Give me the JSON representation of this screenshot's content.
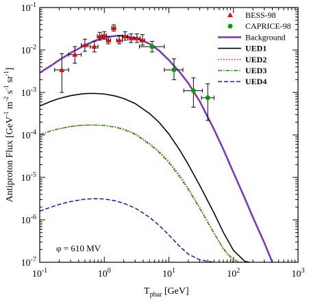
{
  "chart_data": {
    "type": "line",
    "xlabel_main": "T",
    "xlabel_sub": "pbar",
    "xlabel_unit": " [GeV]",
    "ylabel_main": "Antiproton Flux [GeV",
    "ylabel_m": " m",
    "ylabel_s": " s",
    "ylabel_sr": " sr",
    "ylabel_end": "]",
    "ylabel_exp1": "-1",
    "ylabel_exp2": "-2",
    "ylabel_exp3": "-1",
    "ylabel_exp4": "-1",
    "xscale": "log",
    "yscale": "log",
    "xlim": [
      0.1,
      1000
    ],
    "ylim": [
      1e-07,
      0.1
    ],
    "x_ticks": [
      {
        "value": 0.1,
        "base": "10",
        "exp": "-1"
      },
      {
        "value": 1,
        "base": "10",
        "exp": "0"
      },
      {
        "value": 10,
        "base": "10",
        "exp": "1"
      },
      {
        "value": 100,
        "base": "10",
        "exp": "2"
      },
      {
        "value": 1000,
        "base": "10",
        "exp": "3"
      }
    ],
    "y_ticks": [
      {
        "value": 1e-07,
        "base": "10",
        "exp": "-7"
      },
      {
        "value": 1e-06,
        "base": "10",
        "exp": "-6"
      },
      {
        "value": 1e-05,
        "base": "10",
        "exp": "-5"
      },
      {
        "value": 0.0001,
        "base": "10",
        "exp": "-4"
      },
      {
        "value": 0.001,
        "base": "10",
        "exp": "-3"
      },
      {
        "value": 0.01,
        "base": "10",
        "exp": "-2"
      },
      {
        "value": 0.1,
        "base": "10",
        "exp": "-1"
      }
    ],
    "annotation": "φ = 610 MV",
    "legend_position": "top-right",
    "series": [
      {
        "name": "BESS-98",
        "kind": "points",
        "marker": "triangle",
        "color": "#ff0000",
        "points": [
          {
            "x": 0.22,
            "y": 0.0034,
            "ylo": 0.001,
            "yhi": 0.0082,
            "xlo": 0.17,
            "xhi": 0.28
          },
          {
            "x": 0.35,
            "y": 0.0078,
            "ylo": 0.0049,
            "yhi": 0.012,
            "xlo": 0.28,
            "xhi": 0.44
          },
          {
            "x": 0.5,
            "y": 0.013,
            "ylo": 0.0093,
            "yhi": 0.018,
            "xlo": 0.44,
            "xhi": 0.56
          },
          {
            "x": 0.7,
            "y": 0.012,
            "ylo": 0.009,
            "yhi": 0.016,
            "xlo": 0.6,
            "xhi": 0.8
          },
          {
            "x": 0.85,
            "y": 0.021,
            "ylo": 0.017,
            "yhi": 0.026,
            "xlo": 0.78,
            "xhi": 0.92
          },
          {
            "x": 1.0,
            "y": 0.022,
            "ylo": 0.018,
            "yhi": 0.027,
            "xlo": 0.92,
            "xhi": 1.08
          },
          {
            "x": 1.15,
            "y": 0.017,
            "ylo": 0.014,
            "yhi": 0.021,
            "xlo": 1.08,
            "xhi": 1.25
          },
          {
            "x": 1.4,
            "y": 0.033,
            "ylo": 0.028,
            "yhi": 0.039,
            "xlo": 1.3,
            "xhi": 1.5
          },
          {
            "x": 1.7,
            "y": 0.017,
            "ylo": 0.014,
            "yhi": 0.022,
            "xlo": 1.55,
            "xhi": 1.9
          },
          {
            "x": 2.1,
            "y": 0.021,
            "ylo": 0.017,
            "yhi": 0.027,
            "xlo": 1.9,
            "xhi": 2.3
          },
          {
            "x": 2.6,
            "y": 0.019,
            "ylo": 0.015,
            "yhi": 0.024,
            "xlo": 2.3,
            "xhi": 2.9
          },
          {
            "x": 3.2,
            "y": 0.019,
            "ylo": 0.015,
            "yhi": 0.024,
            "xlo": 2.9,
            "xhi": 3.6
          },
          {
            "x": 3.9,
            "y": 0.017,
            "ylo": 0.013,
            "yhi": 0.023,
            "xlo": 3.6,
            "xhi": 4.2
          }
        ]
      },
      {
        "name": "CAPRICE-98",
        "kind": "points",
        "marker": "circle",
        "color": "#00a000",
        "points": [
          {
            "x": 5.5,
            "y": 0.012,
            "ylo": 0.009,
            "yhi": 0.016,
            "xlo": 3.5,
            "xhi": 8.5
          },
          {
            "x": 12,
            "y": 0.0034,
            "ylo": 0.002,
            "yhi": 0.0062,
            "xlo": 8.5,
            "xhi": 16.5
          },
          {
            "x": 24,
            "y": 0.0011,
            "ylo": 0.00045,
            "yhi": 0.0022,
            "xlo": 17,
            "xhi": 33
          },
          {
            "x": 40,
            "y": 0.00075,
            "ylo": 0.00022,
            "yhi": 0.0016,
            "xlo": 32,
            "xhi": 50
          }
        ]
      },
      {
        "name": "Background",
        "kind": "line",
        "color": "#7b2fc6",
        "dash": "",
        "width": 2.5,
        "bold": false,
        "x": [
          0.1,
          0.15,
          0.2,
          0.3,
          0.4,
          0.5,
          0.7,
          1,
          1.5,
          2,
          3,
          4,
          5,
          7,
          10,
          15,
          20,
          30,
          50,
          70,
          100,
          150,
          200,
          300,
          400
        ],
        "y": [
          0.0029,
          0.0043,
          0.0058,
          0.0085,
          0.0108,
          0.0129,
          0.0163,
          0.0196,
          0.0215,
          0.0215,
          0.0192,
          0.0165,
          0.014,
          0.0098,
          0.0058,
          0.0029,
          0.00165,
          0.00062,
          0.000135,
          4.5e-05,
          1.3e-05,
          3.2e-06,
          1.15e-06,
          2.9e-07,
          1e-07
        ]
      },
      {
        "name": "UED1",
        "kind": "line",
        "color": "#000000",
        "dash": "",
        "width": 1.6,
        "bold": true,
        "x": [
          0.1,
          0.15,
          0.2,
          0.3,
          0.4,
          0.5,
          0.7,
          1,
          1.5,
          2,
          3,
          5,
          7,
          10,
          15,
          20,
          30,
          50,
          70,
          100,
          150,
          180
        ],
        "y": [
          0.00048,
          0.00062,
          0.00072,
          0.00084,
          0.0009,
          0.00094,
          0.00095,
          0.00092,
          0.00082,
          0.00072,
          0.00055,
          0.00032,
          0.0002,
          0.000105,
          4.2e-05,
          2e-05,
          6.5e-06,
          1.45e-06,
          5e-07,
          1.9e-07,
          1.05e-07,
          1e-07
        ]
      },
      {
        "name": "UED2",
        "kind": "line",
        "color": "#ff0000",
        "dash": "1.5,2.5",
        "width": 1.4,
        "bold": true,
        "x": [
          0.1,
          0.15,
          0.2,
          0.3,
          0.4,
          0.5,
          0.7,
          1,
          1.5,
          2,
          3,
          5,
          7,
          10,
          15,
          20,
          30,
          50,
          70,
          100,
          120
        ],
        "y": [
          0.0001,
          0.000123,
          0.000138,
          0.000157,
          0.000165,
          0.00017,
          0.000172,
          0.000168,
          0.000155,
          0.000138,
          0.000108,
          6.4e-05,
          4.2e-05,
          2.4e-05,
          1.08e-05,
          5.6e-06,
          2e-06,
          5e-07,
          2e-07,
          1e-07,
          1e-07
        ]
      },
      {
        "name": "UED3",
        "kind": "line",
        "color": "#00a000",
        "dash": "6,2,1.5,2",
        "width": 1.4,
        "bold": true,
        "x": [
          0.1,
          0.15,
          0.2,
          0.3,
          0.4,
          0.5,
          0.7,
          1,
          1.5,
          2,
          3,
          5,
          7,
          10,
          15,
          20,
          30,
          50,
          70,
          100,
          130
        ],
        "y": [
          0.000102,
          0.000125,
          0.00014,
          0.000158,
          0.000166,
          0.00017,
          0.000171,
          0.000166,
          0.000151,
          0.000133,
          0.000103,
          6e-05,
          3.9e-05,
          2.2e-05,
          9.8e-06,
          5.1e-06,
          1.85e-06,
          4.8e-07,
          2.1e-07,
          1.15e-07,
          1e-07
        ]
      },
      {
        "name": "UED4",
        "kind": "line",
        "color": "#0000ff",
        "dash": "6,3",
        "width": 1.4,
        "bold": true,
        "x": [
          0.1,
          0.15,
          0.2,
          0.3,
          0.4,
          0.5,
          0.7,
          1,
          1.5,
          2,
          3,
          5,
          7,
          10,
          15,
          20,
          30,
          40,
          50
        ],
        "y": [
          1.6e-06,
          2e-06,
          2.3e-06,
          2.7e-06,
          2.9e-06,
          3.05e-06,
          3.15e-06,
          3.1e-06,
          2.8e-06,
          2.45e-06,
          1.9e-06,
          1.15e-06,
          7.5e-07,
          4.4e-07,
          2.3e-07,
          1.55e-07,
          1.15e-07,
          1.05e-07,
          1e-07
        ]
      }
    ]
  }
}
